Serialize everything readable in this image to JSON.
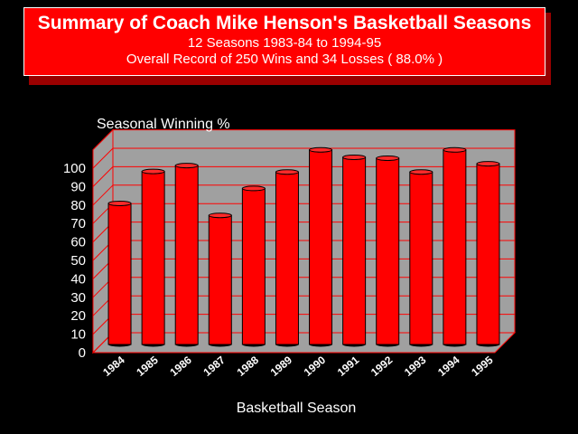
{
  "header": {
    "title": "Summary of Coach Mike Henson's Basketball Seasons",
    "subtitle": "12 Seasons   1983-84 to 1994-95",
    "record": "Overall Record of 250 Wins and 34 Losses ( 88.0% )"
  },
  "colors": {
    "background": "#000000",
    "bar": "#ff0000",
    "plot_wall": "#a0a0a0",
    "grid": "#ff0000",
    "text": "#ffffff"
  },
  "chart_data": {
    "type": "bar",
    "title": "",
    "ylabel": "Seasonal Winning %",
    "xlabel": "Basketball Season",
    "categories": [
      "1984",
      "1985",
      "1986",
      "1987",
      "1988",
      "1989",
      "1990",
      "1991",
      "1992",
      "1993",
      "1994",
      "1995"
    ],
    "values": [
      76.5,
      93.8,
      97,
      70,
      84.6,
      93.5,
      105.5,
      101.5,
      101,
      93.5,
      105.5,
      98
    ],
    "yticks": [
      0,
      10,
      20,
      30,
      40,
      50,
      60,
      70,
      80,
      90,
      100
    ],
    "ylim": [
      0,
      110
    ],
    "style": "3d-cylinder",
    "grid": true
  }
}
